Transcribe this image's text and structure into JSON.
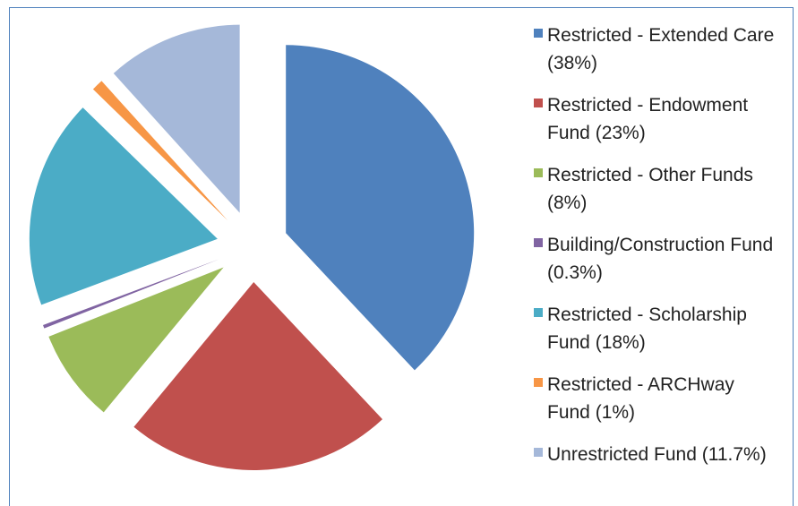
{
  "chart_data": {
    "type": "pie",
    "categories": [
      "Restricted - Extended Care (38%)",
      "Restricted - Endowment Fund (23%)",
      "Restricted - Other Funds (8%)",
      "Building/Construction Fund (0.3%)",
      "Restricted - Scholarship Fund (18%)",
      "Restricted - ARCHway Fund (1%)",
      "Unrestricted Fund (11.7%)"
    ],
    "values": [
      38,
      23,
      8,
      0.3,
      18,
      1,
      11.7
    ],
    "colors": [
      "#4f81bd",
      "#c0504d",
      "#9bbb59",
      "#8064a2",
      "#4bacc6",
      "#f79646",
      "#a5b8d9"
    ],
    "legend": "right"
  }
}
